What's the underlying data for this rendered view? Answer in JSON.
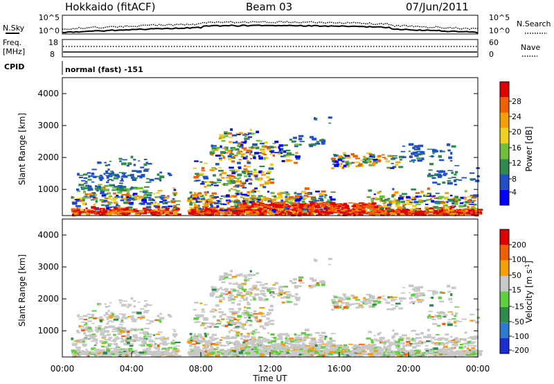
{
  "header": {
    "title": "Hokkaido (fitACF)",
    "beam": "Beam 03",
    "date": "07/Jun/2011"
  },
  "noise_panel": {
    "left_label": "N.Sky",
    "right_label": "N.Search",
    "ticks_left": [
      "10^5",
      "10^0"
    ],
    "ticks_right": [
      "10^5",
      "10^0"
    ]
  },
  "freq_panel": {
    "left_label_1": "Freq.",
    "left_label_2": "[MHz]",
    "ticks_left": [
      "18",
      "8"
    ],
    "right_label": "Nave",
    "ticks_right": [
      "60",
      "0"
    ]
  },
  "cpid": {
    "label": "CPID",
    "value": "normal (fast) -151"
  },
  "chart_data": [
    {
      "type": "heatmap",
      "name": "power",
      "ylabel": "Slant Range [km]",
      "xlabel": "",
      "y_ticks": [
        "4000",
        "3000",
        "2000",
        "1000"
      ],
      "colorbar_label": "Power [dB]",
      "colorbar_ticks": [
        "28",
        "24",
        "20",
        "16",
        "12",
        "8",
        "4"
      ],
      "colors": [
        "#0000ff",
        "#2050c8",
        "#2f8a4e",
        "#6fbf3a",
        "#f0d020",
        "#f5a000",
        "#f06000",
        "#e00000"
      ]
    },
    {
      "type": "heatmap",
      "name": "velocity",
      "ylabel": "Slant Range [km]",
      "xlabel": "Time UT",
      "y_ticks": [
        "4000",
        "3000",
        "2000",
        "1000"
      ],
      "x_ticks": [
        "00:00",
        "04:00",
        "08:00",
        "12:00",
        "16:00",
        "20:00",
        "00:00"
      ],
      "colorbar_label": "Velocity [m s",
      "colorbar_label_sup": "-1",
      "colorbar_label_end": "]",
      "colorbar_ticks": [
        "200",
        "100",
        "50",
        "15",
        "-15",
        "-50",
        "-100",
        "-200"
      ],
      "colors": [
        "#1a2fd0",
        "#2d7bd0",
        "#2f8a4e",
        "#5ed040",
        "#c8c8c8",
        "#f5a000",
        "#f06000",
        "#e00000"
      ]
    }
  ]
}
